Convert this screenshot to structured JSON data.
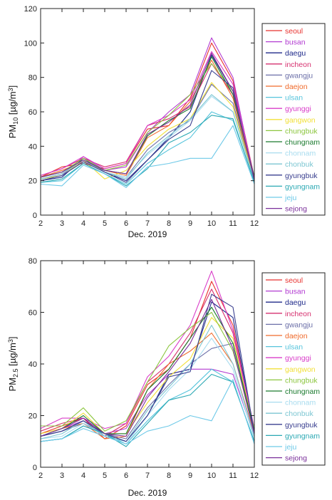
{
  "chart_data": [
    {
      "type": "line",
      "xlabel": "Dec. 2019",
      "ylabel": {
        "base": "PM",
        "sub": "10",
        "unit_pre": " [µg/m",
        "unit_sup": "3",
        "unit_post": "]"
      },
      "x": [
        2,
        3,
        4,
        5,
        6,
        7,
        8,
        9,
        10,
        11,
        12
      ],
      "xlim": [
        2,
        12
      ],
      "ylim": [
        0,
        120
      ],
      "yticks": [
        0,
        20,
        40,
        60,
        80,
        100,
        120
      ],
      "xticks": [
        2,
        3,
        4,
        5,
        6,
        7,
        8,
        9,
        10,
        11,
        12
      ],
      "grid": false,
      "legend_position": "right",
      "series": [
        {
          "name": "seoul",
          "color": "#e8322f",
          "values": [
            22,
            28,
            30,
            27,
            30,
            50,
            52,
            68,
            100,
            78,
            22
          ]
        },
        {
          "name": "busan",
          "color": "#b23bd1",
          "values": [
            21,
            23,
            34,
            26,
            28,
            48,
            60,
            70,
            103,
            80,
            20
          ]
        },
        {
          "name": "daegu",
          "color": "#1f2a8a",
          "values": [
            20,
            22,
            33,
            25,
            20,
            32,
            45,
            60,
            93,
            72,
            20
          ]
        },
        {
          "name": "incheon",
          "color": "#d6306f",
          "values": [
            23,
            27,
            33,
            28,
            31,
            52,
            56,
            63,
            88,
            70,
            22
          ]
        },
        {
          "name": "gwangju",
          "color": "#6b6fa8",
          "values": [
            21,
            24,
            32,
            25,
            22,
            38,
            48,
            55,
            76,
            65,
            21
          ]
        },
        {
          "name": "daejon",
          "color": "#f06a2a",
          "values": [
            22,
            26,
            31,
            26,
            23,
            45,
            52,
            66,
            90,
            68,
            21
          ]
        },
        {
          "name": "ulsan",
          "color": "#56c4dc",
          "values": [
            19,
            20,
            30,
            24,
            18,
            30,
            38,
            45,
            60,
            55,
            19
          ]
        },
        {
          "name": "gyunggi",
          "color": "#d93ec9",
          "values": [
            23,
            27,
            34,
            27,
            30,
            52,
            58,
            67,
            95,
            76,
            22
          ]
        },
        {
          "name": "gangwon",
          "color": "#f2e03a",
          "values": [
            21,
            23,
            32,
            21,
            26,
            40,
            50,
            56,
            77,
            63,
            20
          ]
        },
        {
          "name": "chungbuk",
          "color": "#8cc63f",
          "values": [
            22,
            25,
            33,
            26,
            29,
            48,
            58,
            70,
            88,
            72,
            21
          ]
        },
        {
          "name": "chungnam",
          "color": "#1a7a2e",
          "values": [
            22,
            25,
            32,
            26,
            24,
            46,
            55,
            62,
            92,
            70,
            22
          ]
        },
        {
          "name": "chonnam",
          "color": "#a8dcef",
          "values": [
            20,
            23,
            31,
            25,
            22,
            35,
            45,
            55,
            69,
            60,
            20
          ]
        },
        {
          "name": "chonbuk",
          "color": "#7cc6d2",
          "values": [
            21,
            24,
            32,
            25,
            21,
            36,
            46,
            56,
            70,
            60,
            20
          ]
        },
        {
          "name": "gyungbuk",
          "color": "#3a3f8f",
          "values": [
            20,
            23,
            31,
            25,
            19,
            32,
            44,
            52,
            84,
            74,
            20
          ]
        },
        {
          "name": "gyungnam",
          "color": "#2aa8b3",
          "values": [
            19,
            21,
            30,
            24,
            17,
            27,
            42,
            48,
            58,
            56,
            19
          ]
        },
        {
          "name": "jeju",
          "color": "#6ec9e8",
          "values": [
            18,
            17,
            29,
            24,
            16,
            28,
            30,
            33,
            33,
            52,
            18
          ]
        },
        {
          "name": "sejong",
          "color": "#7a2f9a",
          "values": [
            22,
            25,
            32,
            26,
            24,
            47,
            54,
            64,
            94,
            72,
            21
          ]
        }
      ]
    },
    {
      "type": "line",
      "xlabel": "Dec. 2019",
      "ylabel": {
        "base": "PM",
        "sub": "2.5",
        "unit_pre": " [µg/m",
        "unit_sup": "3",
        "unit_post": "]"
      },
      "x": [
        2,
        3,
        4,
        5,
        6,
        7,
        8,
        9,
        10,
        11,
        12
      ],
      "xlim": [
        2,
        12
      ],
      "ylim": [
        0,
        80
      ],
      "yticks": [
        0,
        20,
        40,
        60,
        80
      ],
      "xticks": [
        2,
        3,
        4,
        5,
        6,
        7,
        8,
        9,
        10,
        11,
        12
      ],
      "grid": false,
      "legend_position": "right",
      "series": [
        {
          "name": "seoul",
          "color": "#e8322f",
          "values": [
            13,
            16,
            19,
            11,
            16,
            32,
            38,
            50,
            72,
            55,
            14
          ]
        },
        {
          "name": "busan",
          "color": "#b23bd1",
          "values": [
            12,
            15,
            18,
            13,
            15,
            28,
            36,
            38,
            38,
            36,
            12
          ]
        },
        {
          "name": "daegu",
          "color": "#1f2a8a",
          "values": [
            12,
            14,
            18,
            13,
            10,
            20,
            36,
            38,
            64,
            58,
            13
          ]
        },
        {
          "name": "incheon",
          "color": "#d6306f",
          "values": [
            14,
            17,
            19,
            12,
            17,
            33,
            40,
            52,
            69,
            52,
            15
          ]
        },
        {
          "name": "gwangju",
          "color": "#6b6fa8",
          "values": [
            12,
            14,
            17,
            13,
            11,
            23,
            32,
            40,
            46,
            48,
            13
          ]
        },
        {
          "name": "daejon",
          "color": "#f06a2a",
          "values": [
            13,
            15,
            17,
            11,
            12,
            30,
            40,
            45,
            52,
            40,
            13
          ]
        },
        {
          "name": "ulsan",
          "color": "#56c4dc",
          "values": [
            10,
            11,
            16,
            13,
            9,
            18,
            26,
            30,
            38,
            33,
            10
          ]
        },
        {
          "name": "gyunggi",
          "color": "#d93ec9",
          "values": [
            15,
            19,
            19,
            15,
            17,
            35,
            43,
            55,
            76,
            53,
            15
          ]
        },
        {
          "name": "gangwon",
          "color": "#f2e03a",
          "values": [
            13,
            15,
            21,
            13,
            13,
            25,
            35,
            42,
            58,
            50,
            14
          ]
        },
        {
          "name": "chungbuk",
          "color": "#8cc63f",
          "values": [
            16,
            16,
            23,
            14,
            18,
            33,
            47,
            54,
            60,
            45,
            15
          ]
        },
        {
          "name": "chungnam",
          "color": "#1a7a2e",
          "values": [
            12,
            15,
            20,
            13,
            13,
            30,
            38,
            50,
            62,
            48,
            14
          ]
        },
        {
          "name": "chonnam",
          "color": "#a8dcef",
          "values": [
            11,
            12,
            17,
            12,
            9,
            20,
            30,
            38,
            50,
            38,
            11
          ]
        },
        {
          "name": "chonbuk",
          "color": "#7cc6d2",
          "values": [
            11,
            13,
            18,
            12,
            10,
            22,
            31,
            40,
            55,
            40,
            12
          ]
        },
        {
          "name": "gyungbuk",
          "color": "#3a3f8f",
          "values": [
            12,
            14,
            18,
            13,
            10,
            20,
            35,
            37,
            67,
            62,
            13
          ]
        },
        {
          "name": "gyungnam",
          "color": "#2aa8b3",
          "values": [
            10,
            11,
            16,
            13,
            8,
            17,
            26,
            28,
            36,
            33,
            10
          ]
        },
        {
          "name": "jeju",
          "color": "#6ec9e8",
          "values": [
            10,
            11,
            15,
            12,
            9,
            14,
            16,
            20,
            18,
            34,
            9
          ]
        },
        {
          "name": "sejong",
          "color": "#7a2f9a",
          "values": [
            12,
            15,
            19,
            13,
            12,
            27,
            37,
            48,
            65,
            46,
            13
          ]
        }
      ]
    }
  ]
}
